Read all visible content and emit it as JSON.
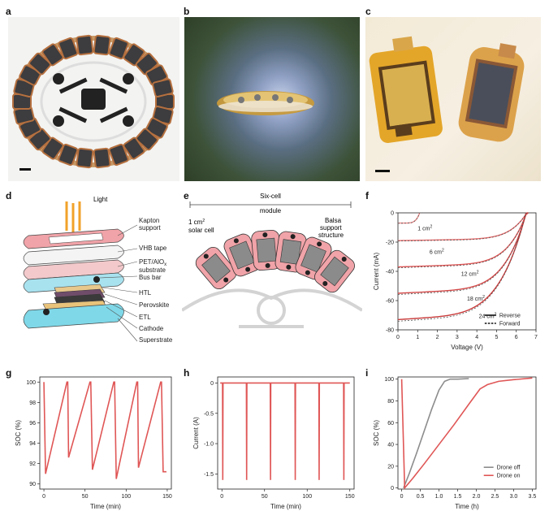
{
  "panels": {
    "a": {
      "label": "a"
    },
    "b": {
      "label": "b"
    },
    "c": {
      "label": "c"
    },
    "d": {
      "label": "d",
      "labels": {
        "light": "Light",
        "kapton": "Kapton",
        "support": "support",
        "vhb": "VHB tape",
        "pet": "PET/AlO",
        "pet_sub": "x",
        "substrate": "substrate",
        "busbar": "Bus bar",
        "htl": "HTL",
        "perovskite": "Perovskite",
        "etl": "ETL",
        "cathode": "Cathode",
        "superstrate": "Superstrate"
      }
    },
    "e": {
      "label": "e",
      "labels": {
        "six": "Six-cell",
        "module": "module",
        "cell1": "1 cm",
        "cell1_sup": "2",
        "cell2": "solar cell",
        "balsa1": "Balsa",
        "balsa2": "support",
        "balsa3": "structure"
      }
    },
    "f": {
      "label": "f"
    },
    "g": {
      "label": "g"
    },
    "h": {
      "label": "h"
    },
    "i": {
      "label": "i"
    }
  },
  "chart_data": [
    {
      "id": "f",
      "type": "line",
      "xlabel": "Voltage (V)",
      "ylabel": "Current (mA)",
      "xlim": [
        0,
        7
      ],
      "ylim": [
        -80,
        0
      ],
      "xticks": [
        0,
        1,
        2,
        3,
        4,
        5,
        6,
        7
      ],
      "yticks": [
        0,
        -20,
        -40,
        -60,
        -80
      ],
      "curve_labels": [
        {
          "text": "1 cm",
          "sup": "2",
          "x": 1.0,
          "y": -12
        },
        {
          "text": "6 cm",
          "sup": "2",
          "x": 1.6,
          "y": -28
        },
        {
          "text": "12 cm",
          "sup": "2",
          "x": 3.2,
          "y": -43
        },
        {
          "text": "18 cm",
          "sup": "2",
          "x": 3.5,
          "y": -60
        },
        {
          "text": "24 cm",
          "sup": "2",
          "x": 4.1,
          "y": -72
        }
      ],
      "legend": {
        "position": "bottom-right",
        "entries": [
          "Reverse",
          "Forward"
        ]
      },
      "series": [
        {
          "isc": -7,
          "voc": 1.1
        },
        {
          "isc": -19,
          "voc": 6.6
        },
        {
          "isc": -37,
          "voc": 6.6
        },
        {
          "isc": -55,
          "voc": 6.6
        },
        {
          "isc": -73,
          "voc": 6.6
        }
      ]
    },
    {
      "id": "g",
      "type": "line",
      "xlabel": "Time (min)",
      "ylabel": "SOC (%)",
      "xlim": [
        -5,
        155
      ],
      "ylim": [
        89.5,
        100.5
      ],
      "xticks": [
        0,
        50,
        100,
        150
      ],
      "yticks": [
        90,
        92,
        94,
        96,
        98,
        100
      ],
      "series": [
        {
          "x": [
            0,
            0,
            2,
            28,
            29,
            30,
            56,
            57,
            59,
            85,
            86,
            88,
            113,
            114,
            115,
            142,
            143,
            145,
            149
          ],
          "y": [
            100,
            100,
            91,
            100,
            100,
            92.6,
            100,
            100,
            91.4,
            100,
            100,
            90.5,
            100,
            100,
            91.6,
            100,
            100,
            91.2,
            91.2
          ]
        }
      ]
    },
    {
      "id": "h",
      "type": "line",
      "xlabel": "Time (min)",
      "ylabel": "Current (A)",
      "xlim": [
        -5,
        155
      ],
      "ylim": [
        -1.75,
        0.1
      ],
      "xticks": [
        0,
        50,
        100,
        150
      ],
      "yticks": [
        0,
        -0.5,
        -1.0,
        -1.5
      ],
      "ytick_labels": [
        "0",
        "-0.5",
        "-1.0",
        "-1.5"
      ],
      "spikes_at": [
        1,
        29,
        57,
        86,
        114,
        143
      ],
      "spike_depth": -1.6,
      "baseline": 0
    },
    {
      "id": "i",
      "type": "line",
      "xlabel": "Time (h)",
      "ylabel": "SOC (%)",
      "xlim": [
        -0.1,
        3.6
      ],
      "ylim": [
        -1,
        102
      ],
      "xticks": [
        0,
        0.5,
        1.0,
        1.5,
        2.0,
        2.5,
        3.0,
        3.5
      ],
      "xtick_labels": [
        "0",
        "0.5",
        "1.0",
        "1.5",
        "2.0",
        "2.5",
        "3.0",
        "3.5"
      ],
      "yticks": [
        0,
        20,
        40,
        60,
        80,
        100
      ],
      "legend": {
        "position": "bottom-right"
      },
      "series": [
        {
          "name": "Drone off",
          "color": "#8c8c8c",
          "x": [
            0.05,
            0.2,
            0.4,
            0.6,
            0.8,
            1.0,
            1.15,
            1.3,
            1.5,
            1.8
          ],
          "y": [
            0,
            13,
            32,
            52,
            72,
            90,
            98,
            100,
            100,
            100.5
          ]
        },
        {
          "name": "Drone on",
          "color": "#e05656",
          "x": [
            0,
            0,
            0.08,
            0.3,
            0.6,
            1.0,
            1.4,
            1.8,
            2.1,
            2.3,
            2.6,
            3.0,
            3.5
          ],
          "y": [
            100,
            100,
            0,
            9,
            22,
            40,
            58,
            77,
            91,
            95,
            98,
            99.5,
            101
          ]
        }
      ]
    }
  ]
}
